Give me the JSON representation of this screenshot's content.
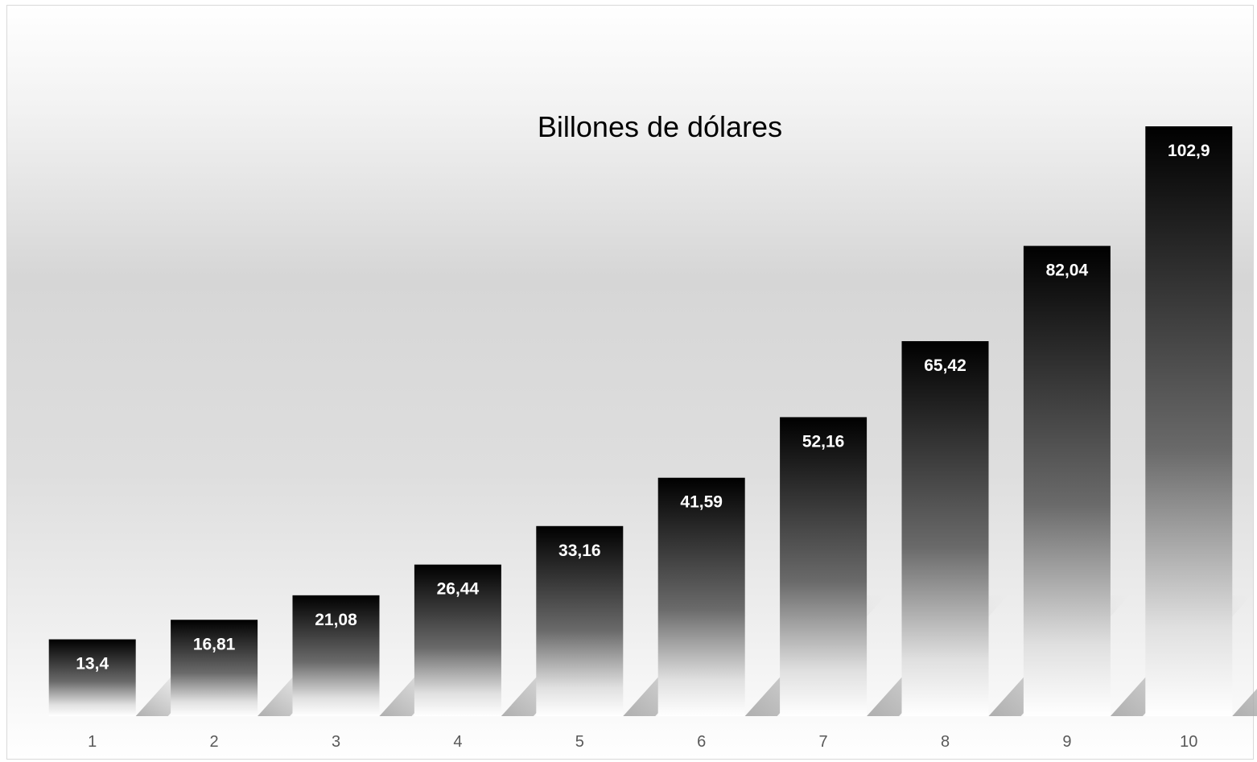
{
  "chart_data": {
    "type": "bar",
    "title": "Billones de dólares",
    "categories": [
      "1",
      "2",
      "3",
      "4",
      "5",
      "6",
      "7",
      "8",
      "9",
      "10"
    ],
    "values": [
      13.4,
      16.81,
      21.08,
      26.44,
      33.16,
      41.59,
      52.16,
      65.42,
      82.04,
      102.9
    ],
    "data_labels": [
      "13,4",
      "16,81",
      "21,08",
      "26,44",
      "33,16",
      "41,59",
      "52,16",
      "65,42",
      "82,04",
      "102,9"
    ],
    "xlabel": "",
    "ylabel": "",
    "ylim": [
      0,
      102.9
    ],
    "grid": false,
    "legend": "none",
    "bar_gradient": [
      "#000000",
      "#ffffff"
    ],
    "shadow_color": "#a6a6a6",
    "label_color": "#ffffff",
    "tick_color": "#595959",
    "title_color": "#000000"
  }
}
